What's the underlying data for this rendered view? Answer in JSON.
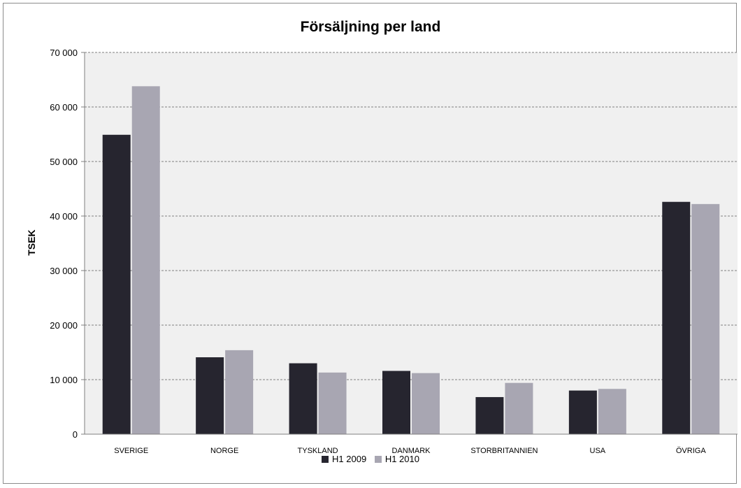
{
  "chart_data": {
    "type": "bar",
    "title": "Försäljning per land",
    "xlabel": "",
    "ylabel": "TSEK",
    "categories": [
      "SVERIGE",
      "NORGE",
      "TYSKLAND",
      "DANMARK",
      "STORBRITANNIEN",
      "USA",
      "ÖVRIGA"
    ],
    "series": [
      {
        "name": "H1 2009",
        "color": "#26252f",
        "values": [
          54900,
          14100,
          13000,
          11600,
          6800,
          8000,
          42600
        ]
      },
      {
        "name": "H1 2010",
        "color": "#a8a6b2",
        "values": [
          63800,
          15400,
          11300,
          11200,
          9400,
          8300,
          42200
        ]
      }
    ],
    "ylim": [
      0,
      70000
    ],
    "yticks": [
      0,
      10000,
      20000,
      30000,
      40000,
      50000,
      60000,
      70000
    ],
    "ytick_labels": [
      "0",
      "10 000",
      "20 000",
      "30 000",
      "40 000",
      "50 000",
      "60 000",
      "70 000"
    ],
    "grid": true,
    "legend_position": "bottom",
    "plot_background": "#f0f0f0"
  }
}
